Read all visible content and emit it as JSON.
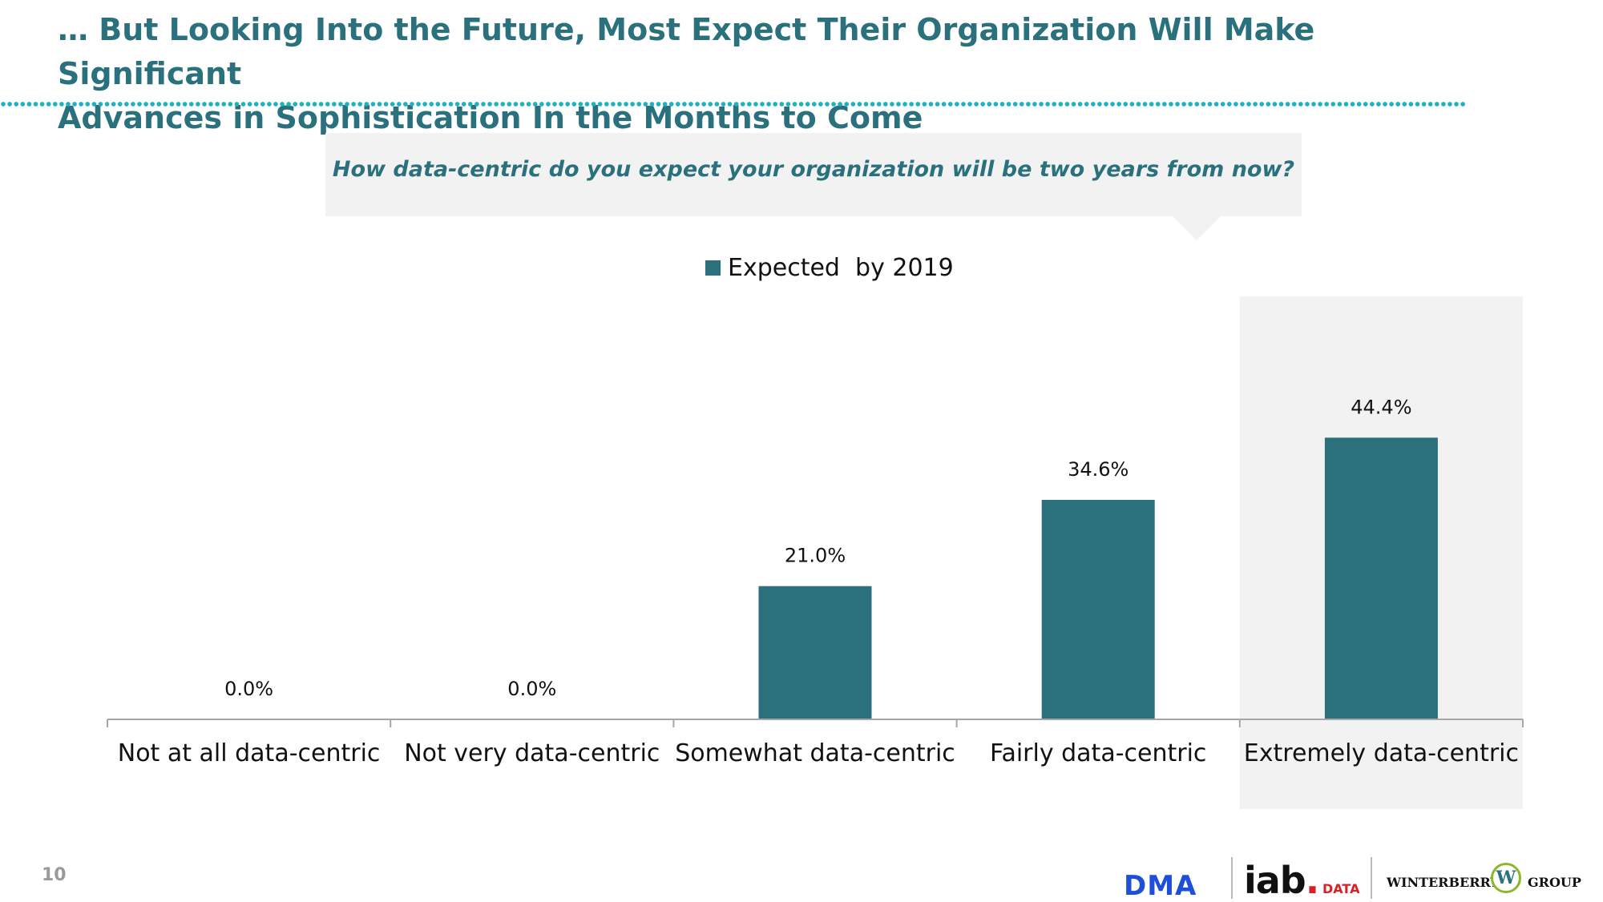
{
  "header": {
    "title_line1": "… But Looking Into the Future, Most Expect Their Organization Will Make Significant",
    "title_line2": "Advances in Sophistication In the Months to Come"
  },
  "callout": {
    "question": "How data-centric do you expect your organization will be two years from now?"
  },
  "footer": {
    "page_number": "10",
    "logos": {
      "dma": "DMA",
      "iab": "iab",
      "iab_data": "DATA",
      "winterberry": "WINTERBERRY",
      "w_mark": "W",
      "group": "GROUP"
    }
  },
  "colors": {
    "accent": "#2a717d",
    "dotted_rule": "#1ab2c4",
    "highlight_panel": "#f2f2f2"
  },
  "chart_data": {
    "type": "bar",
    "categories": [
      "Not at all data-centric",
      "Not very data-centric",
      "Somewhat data-centric",
      "Fairly data-centric",
      "Extremely data-centric"
    ],
    "series": [
      {
        "name": "Expected  by 2019",
        "values": [
          0.0,
          0.0,
          21.0,
          34.6,
          44.4
        ],
        "labels": [
          "0.0%",
          "0.0%",
          "21.0%",
          "34.6%",
          "44.4%"
        ],
        "color": "#2a717d"
      }
    ],
    "highlighted_category": "Extremely data-centric",
    "ylim": [
      0,
      50
    ],
    "grid": false,
    "legend_position": "top-center"
  }
}
